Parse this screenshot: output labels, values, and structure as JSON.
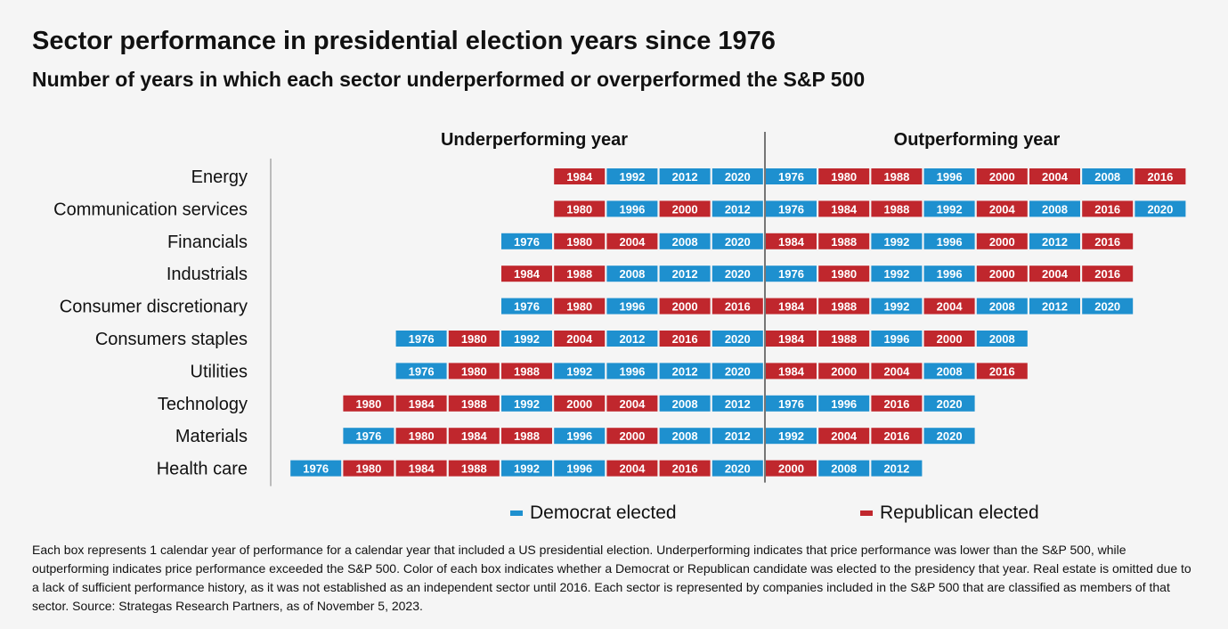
{
  "colors": {
    "democrat": "#1e90cf",
    "republican": "#c0272d",
    "divider": "#555555",
    "axis": "#bbbbbb"
  },
  "legend": [
    {
      "label": "Democrat elected",
      "party": "D"
    },
    {
      "label": "Republican elected",
      "party": "R"
    }
  ],
  "footnote": "Each box represents 1 calendar year of performance for a calendar year that included a US presidential election. Underperforming indicates that price performance was lower than the S&P 500, while outperforming indicates price performance exceeded the S&P 500. Color of each box indicates whether a Democrat or Republican candidate was elected to the presidency that year. Real estate is omitted due to a lack of sufficient performance history, as it was not established as an independent sector until 2016. Each sector is represented by companies included in the S&P 500 that are classified as members of that sector. Source: Strategas Research Partners, as of November 5, 2023.",
  "chart_data": {
    "type": "table",
    "title": "Sector performance in presidential election years since 1976",
    "subtitle": "Number of years in which each sector underperformed or overperformed the S&P 500",
    "underperforming_label": "Underperforming year",
    "outperforming_label": "Outperforming year",
    "party_by_year": {
      "1976": "D",
      "1980": "R",
      "1984": "R",
      "1988": "R",
      "1992": "D",
      "1996": "D",
      "2000": "R",
      "2004": "R",
      "2008": "D",
      "2012": "D",
      "2016": "R",
      "2020": "D"
    },
    "sectors": [
      {
        "name": "Energy",
        "underperforming": [
          "2020",
          "2012",
          "1992",
          "1984"
        ],
        "outperforming": [
          "1976",
          "1980",
          "1988",
          "1996",
          "2000",
          "2004",
          "2008",
          "2016"
        ]
      },
      {
        "name": "Communication services",
        "underperforming": [
          "2012",
          "2000",
          "1996",
          "1980"
        ],
        "outperforming": [
          "1976",
          "1984",
          "1988",
          "1992",
          "2004",
          "2008",
          "2016",
          "2020"
        ]
      },
      {
        "name": "Financials",
        "underperforming": [
          "2020",
          "2008",
          "2004",
          "1980",
          "1976"
        ],
        "outperforming": [
          "1984",
          "1988",
          "1992",
          "1996",
          "2000",
          "2012",
          "2016"
        ]
      },
      {
        "name": "Industrials",
        "underperforming": [
          "2020",
          "2012",
          "2008",
          "1988",
          "1984"
        ],
        "outperforming": [
          "1976",
          "1980",
          "1992",
          "1996",
          "2000",
          "2004",
          "2016"
        ]
      },
      {
        "name": "Consumer discretionary",
        "underperforming": [
          "2016",
          "2000",
          "1996",
          "1980",
          "1976"
        ],
        "outperforming": [
          "1984",
          "1988",
          "1992",
          "2004",
          "2008",
          "2012",
          "2020"
        ]
      },
      {
        "name": "Consumers staples",
        "underperforming": [
          "2020",
          "2016",
          "2012",
          "2004",
          "1992",
          "1980",
          "1976"
        ],
        "outperforming": [
          "1984",
          "1988",
          "1996",
          "2000",
          "2008"
        ]
      },
      {
        "name": "Utilities",
        "underperforming": [
          "2020",
          "2012",
          "1996",
          "1992",
          "1988",
          "1980",
          "1976"
        ],
        "outperforming": [
          "1984",
          "2000",
          "2004",
          "2008",
          "2016"
        ]
      },
      {
        "name": "Technology",
        "underperforming": [
          "2012",
          "2008",
          "2004",
          "2000",
          "1992",
          "1988",
          "1984",
          "1980"
        ],
        "outperforming": [
          "1976",
          "1996",
          "2016",
          "2020"
        ]
      },
      {
        "name": "Materials",
        "underperforming": [
          "2012",
          "2008",
          "2000",
          "1996",
          "1988",
          "1984",
          "1980",
          "1976"
        ],
        "outperforming": [
          "1992",
          "2004",
          "2016",
          "2020"
        ]
      },
      {
        "name": "Health care",
        "underperforming": [
          "2020",
          "2016",
          "2004",
          "1996",
          "1992",
          "1988",
          "1984",
          "1980",
          "1976"
        ],
        "outperforming": [
          "2000",
          "2008",
          "2012"
        ]
      }
    ]
  }
}
